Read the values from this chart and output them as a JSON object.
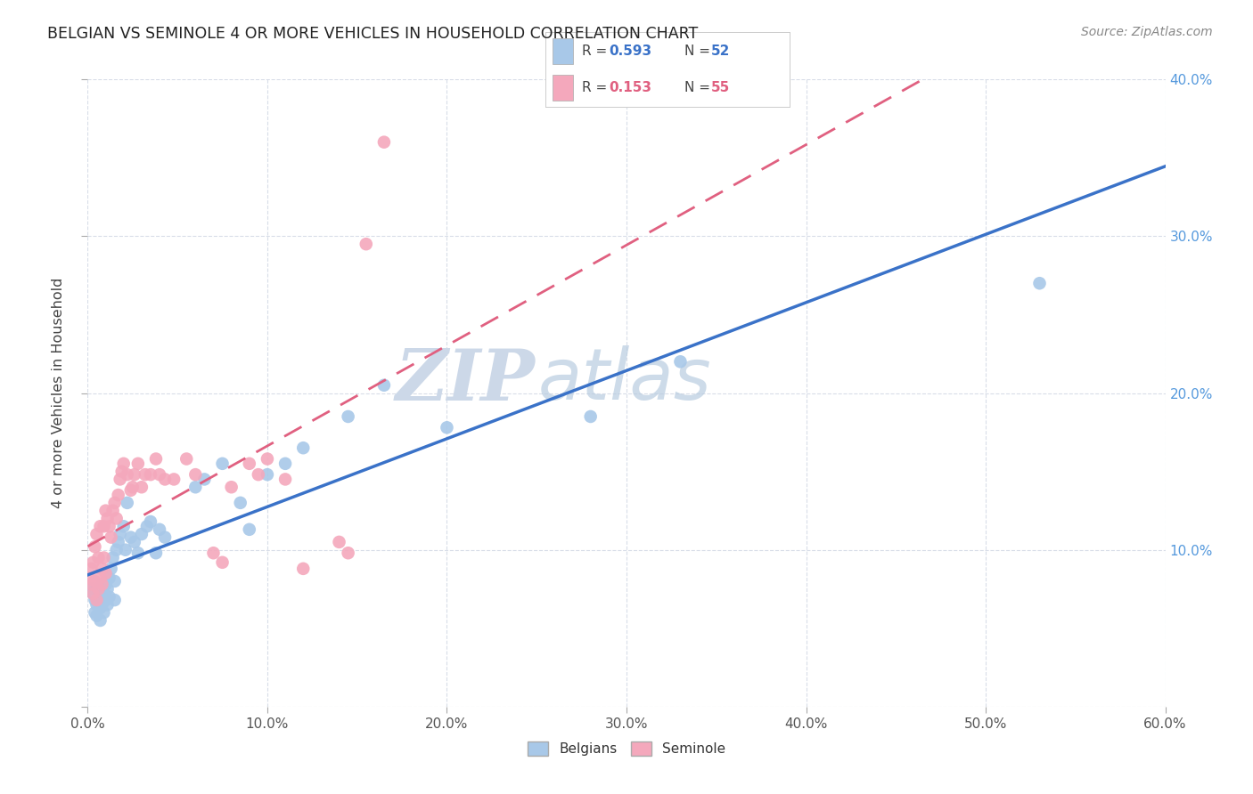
{
  "title": "BELGIAN VS SEMINOLE 4 OR MORE VEHICLES IN HOUSEHOLD CORRELATION CHART",
  "source": "Source: ZipAtlas.com",
  "ylabel_label": "4 or more Vehicles in Household",
  "xlim": [
    0.0,
    0.6
  ],
  "ylim": [
    0.0,
    0.4
  ],
  "xticks": [
    0.0,
    0.1,
    0.2,
    0.3,
    0.4,
    0.5,
    0.6
  ],
  "yticks": [
    0.0,
    0.1,
    0.2,
    0.3,
    0.4
  ],
  "xtick_labels": [
    "0.0%",
    "10.0%",
    "20.0%",
    "30.0%",
    "40.0%",
    "50.0%",
    "60.0%"
  ],
  "ytick_labels_right": [
    "",
    "10.0%",
    "20.0%",
    "30.0%",
    "40.0%"
  ],
  "belgian_R": 0.593,
  "belgian_N": 52,
  "seminole_R": 0.153,
  "seminole_N": 55,
  "belgian_color": "#a8c8e8",
  "seminole_color": "#f4a8bc",
  "belgian_line_color": "#3a72c8",
  "seminole_line_color": "#e06080",
  "watermark_zip": "ZIP",
  "watermark_atlas": "atlas",
  "watermark_color": "#ccd8e8",
  "background_color": "#ffffff",
  "grid_color": "#d8dde8",
  "belgians_x": [
    0.002,
    0.003,
    0.004,
    0.004,
    0.005,
    0.005,
    0.006,
    0.007,
    0.007,
    0.008,
    0.008,
    0.009,
    0.009,
    0.01,
    0.01,
    0.011,
    0.011,
    0.012,
    0.012,
    0.013,
    0.014,
    0.015,
    0.015,
    0.016,
    0.017,
    0.018,
    0.02,
    0.021,
    0.022,
    0.024,
    0.026,
    0.028,
    0.03,
    0.033,
    0.035,
    0.038,
    0.04,
    0.043,
    0.06,
    0.065,
    0.075,
    0.085,
    0.09,
    0.1,
    0.11,
    0.12,
    0.145,
    0.165,
    0.2,
    0.28,
    0.33,
    0.53
  ],
  "belgians_y": [
    0.075,
    0.072,
    0.068,
    0.06,
    0.065,
    0.058,
    0.07,
    0.063,
    0.055,
    0.078,
    0.065,
    0.072,
    0.06,
    0.078,
    0.068,
    0.075,
    0.065,
    0.082,
    0.07,
    0.088,
    0.095,
    0.08,
    0.068,
    0.1,
    0.105,
    0.11,
    0.115,
    0.1,
    0.13,
    0.108,
    0.105,
    0.098,
    0.11,
    0.115,
    0.118,
    0.098,
    0.113,
    0.108,
    0.14,
    0.145,
    0.155,
    0.13,
    0.113,
    0.148,
    0.155,
    0.165,
    0.185,
    0.205,
    0.178,
    0.185,
    0.22,
    0.27
  ],
  "seminole_x": [
    0.001,
    0.002,
    0.002,
    0.003,
    0.003,
    0.004,
    0.004,
    0.005,
    0.005,
    0.006,
    0.006,
    0.007,
    0.007,
    0.008,
    0.008,
    0.009,
    0.009,
    0.01,
    0.01,
    0.011,
    0.012,
    0.013,
    0.014,
    0.015,
    0.016,
    0.017,
    0.018,
    0.019,
    0.02,
    0.022,
    0.024,
    0.025,
    0.026,
    0.028,
    0.03,
    0.032,
    0.035,
    0.038,
    0.04,
    0.043,
    0.048,
    0.055,
    0.06,
    0.07,
    0.075,
    0.08,
    0.09,
    0.095,
    0.1,
    0.11,
    0.12,
    0.14,
    0.145,
    0.155,
    0.165
  ],
  "seminole_y": [
    0.082,
    0.078,
    0.088,
    0.072,
    0.092,
    0.08,
    0.102,
    0.068,
    0.11,
    0.075,
    0.095,
    0.082,
    0.115,
    0.088,
    0.078,
    0.095,
    0.115,
    0.085,
    0.125,
    0.12,
    0.115,
    0.108,
    0.125,
    0.13,
    0.12,
    0.135,
    0.145,
    0.15,
    0.155,
    0.148,
    0.138,
    0.14,
    0.148,
    0.155,
    0.14,
    0.148,
    0.148,
    0.158,
    0.148,
    0.145,
    0.145,
    0.158,
    0.148,
    0.098,
    0.092,
    0.14,
    0.155,
    0.148,
    0.158,
    0.145,
    0.088,
    0.105,
    0.098,
    0.295,
    0.36
  ]
}
